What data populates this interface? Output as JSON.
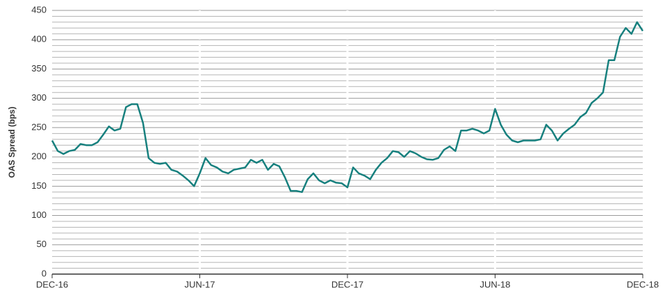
{
  "chart_data": {
    "type": "line",
    "y_label": "OAS Spread (bps)",
    "categories": [
      "DEC-16",
      null,
      null,
      null,
      null,
      null,
      null,
      null,
      null,
      null,
      null,
      null,
      null,
      null,
      null,
      null,
      null,
      null,
      null,
      null,
      null,
      null,
      null,
      null,
      null,
      null,
      "JUN-17",
      null,
      null,
      null,
      null,
      null,
      null,
      null,
      null,
      null,
      null,
      null,
      null,
      null,
      null,
      null,
      null,
      null,
      null,
      null,
      null,
      null,
      null,
      null,
      null,
      null,
      "DEC-17",
      null,
      null,
      null,
      null,
      null,
      null,
      null,
      null,
      null,
      null,
      null,
      null,
      null,
      null,
      null,
      null,
      null,
      null,
      null,
      null,
      null,
      null,
      null,
      null,
      null,
      "JUN-18",
      null,
      null,
      null,
      null,
      null,
      null,
      null,
      null,
      null,
      null,
      null,
      null,
      null,
      null,
      null,
      null,
      null,
      null,
      null,
      null,
      null,
      null,
      null,
      null,
      null,
      "DEC-18"
    ],
    "values": [
      228,
      210,
      205,
      210,
      212,
      222,
      220,
      220,
      225,
      238,
      252,
      245,
      248,
      285,
      290,
      290,
      258,
      198,
      190,
      188,
      190,
      178,
      175,
      168,
      160,
      150,
      172,
      198,
      186,
      182,
      175,
      172,
      178,
      180,
      182,
      195,
      190,
      195,
      178,
      188,
      184,
      165,
      142,
      142,
      140,
      162,
      172,
      160,
      155,
      160,
      156,
      155,
      148,
      182,
      172,
      168,
      162,
      178,
      190,
      198,
      210,
      208,
      200,
      210,
      206,
      200,
      196,
      195,
      198,
      212,
      218,
      210,
      245,
      245,
      248,
      245,
      240,
      245,
      282,
      255,
      238,
      228,
      225,
      228,
      228,
      228,
      230,
      255,
      245,
      228,
      240,
      248,
      255,
      268,
      275,
      292,
      300,
      310,
      365,
      365,
      405,
      420,
      410,
      430,
      415
    ],
    "color": "#17807e",
    "ylim": [
      0,
      450
    ],
    "yticks": [
      0,
      50,
      100,
      150,
      200,
      250,
      300,
      350,
      400,
      450
    ],
    "y_minor_grid": [
      10,
      20,
      30,
      40,
      60,
      70,
      80,
      90,
      110,
      120,
      130,
      140,
      160,
      170,
      180,
      190,
      210,
      220,
      230,
      240,
      260,
      270,
      280,
      290,
      310,
      320,
      330,
      340,
      360,
      370,
      380,
      390,
      410,
      420,
      430,
      440
    ],
    "grid": true
  }
}
